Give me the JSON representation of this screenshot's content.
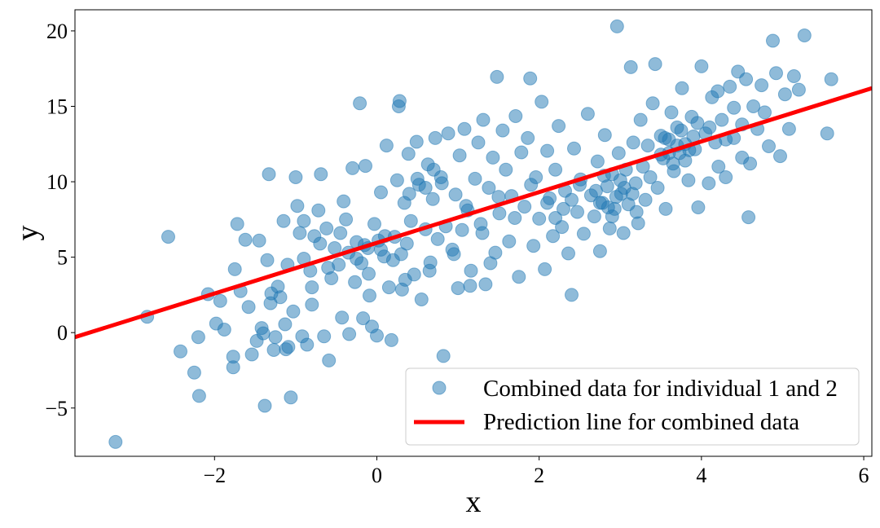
{
  "chart_data": {
    "type": "scatter",
    "xlabel": "x",
    "ylabel": "y",
    "xlim": [
      -3.72,
      6.1
    ],
    "ylim": [
      -8.2,
      21.4
    ],
    "xticks": [
      -2,
      0,
      2,
      4,
      6
    ],
    "yticks": [
      -5,
      0,
      5,
      10,
      15,
      20
    ],
    "xtick_labels": [
      "−2",
      "0",
      "2",
      "4",
      "6"
    ],
    "ytick_labels": [
      "−5",
      "0",
      "5",
      "10",
      "15",
      "20"
    ],
    "grid": false,
    "legend_position": "lower-right",
    "series": [
      {
        "name": "Combined data for individual 1 and 2",
        "kind": "scatter",
        "color": "#1f77b4",
        "alpha": 0.5,
        "points": [
          [
            -3.22,
            -7.25
          ],
          [
            -2.83,
            1.05
          ],
          [
            -2.57,
            6.35
          ],
          [
            -2.42,
            -1.25
          ],
          [
            -2.25,
            -2.65
          ],
          [
            -2.2,
            -0.3
          ],
          [
            -2.19,
            -4.2
          ],
          [
            -2.08,
            2.55
          ],
          [
            -1.98,
            0.6
          ],
          [
            -1.93,
            2.1
          ],
          [
            -1.88,
            0.2
          ],
          [
            -1.77,
            -1.6
          ],
          [
            -1.77,
            -2.3
          ],
          [
            -1.75,
            4.2
          ],
          [
            -1.72,
            7.2
          ],
          [
            -1.68,
            2.75
          ],
          [
            -1.62,
            6.15
          ],
          [
            -1.58,
            1.7
          ],
          [
            -1.54,
            -1.45
          ],
          [
            -1.48,
            -0.55
          ],
          [
            -1.45,
            6.1
          ],
          [
            -1.42,
            0.3
          ],
          [
            -1.4,
            -0.05
          ],
          [
            -1.38,
            -4.85
          ],
          [
            -1.35,
            4.8
          ],
          [
            -1.33,
            10.5
          ],
          [
            -1.31,
            1.95
          ],
          [
            -1.27,
            -1.15
          ],
          [
            -1.25,
            -0.3
          ],
          [
            -1.22,
            3.05
          ],
          [
            -1.19,
            2.35
          ],
          [
            -1.15,
            7.4
          ],
          [
            -1.13,
            0.55
          ],
          [
            -1.12,
            -1.1
          ],
          [
            -1.09,
            -0.95
          ],
          [
            -1.06,
            -4.3
          ],
          [
            -1.03,
            1.4
          ],
          [
            -1.0,
            10.3
          ],
          [
            -0.98,
            8.4
          ],
          [
            -0.95,
            6.6
          ],
          [
            -0.92,
            -0.25
          ],
          [
            -0.9,
            4.9
          ],
          [
            -0.86,
            -0.8
          ],
          [
            -0.82,
            4.1
          ],
          [
            -0.8,
            1.85
          ],
          [
            -0.77,
            6.4
          ],
          [
            -0.72,
            8.1
          ],
          [
            -0.69,
            10.5
          ],
          [
            -0.65,
            -0.25
          ],
          [
            -0.62,
            6.9
          ],
          [
            -0.59,
            -1.85
          ],
          [
            -0.56,
            3.6
          ],
          [
            -0.52,
            5.6
          ],
          [
            -0.47,
            4.5
          ],
          [
            -0.43,
            1.0
          ],
          [
            -0.41,
            8.7
          ],
          [
            -0.38,
            7.5
          ],
          [
            -0.34,
            -0.1
          ],
          [
            -0.3,
            10.9
          ],
          [
            -0.27,
            3.35
          ],
          [
            -0.25,
            6.0
          ],
          [
            -0.21,
            15.2
          ],
          [
            -0.19,
            4.6
          ],
          [
            -0.17,
            0.95
          ],
          [
            -0.14,
            11.05
          ],
          [
            -0.11,
            5.6
          ],
          [
            -0.09,
            2.45
          ],
          [
            -0.06,
            0.4
          ],
          [
            -0.03,
            7.2
          ],
          [
            0.0,
            -0.2
          ],
          [
            0.02,
            6.1
          ],
          [
            0.05,
            9.3
          ],
          [
            0.09,
            5.05
          ],
          [
            0.12,
            12.4
          ],
          [
            0.15,
            3.0
          ],
          [
            0.18,
            -0.5
          ],
          [
            0.22,
            6.35
          ],
          [
            0.25,
            10.1
          ],
          [
            0.27,
            15.0
          ],
          [
            0.28,
            15.35
          ],
          [
            0.31,
            2.85
          ],
          [
            0.34,
            8.6
          ],
          [
            0.37,
            5.9
          ],
          [
            0.39,
            11.85
          ],
          [
            0.42,
            7.4
          ],
          [
            0.46,
            3.85
          ],
          [
            0.49,
            12.65
          ],
          [
            0.52,
            9.8
          ],
          [
            0.55,
            2.2
          ],
          [
            0.6,
            6.85
          ],
          [
            0.63,
            11.15
          ],
          [
            0.66,
            4.65
          ],
          [
            0.69,
            8.85
          ],
          [
            0.72,
            12.9
          ],
          [
            0.75,
            6.2
          ],
          [
            0.79,
            10.3
          ],
          [
            0.82,
            -1.55
          ],
          [
            0.85,
            7.05
          ],
          [
            0.88,
            13.2
          ],
          [
            0.93,
            5.5
          ],
          [
            0.97,
            9.15
          ],
          [
            1.0,
            2.95
          ],
          [
            1.02,
            11.75
          ],
          [
            1.05,
            6.8
          ],
          [
            1.08,
            13.5
          ],
          [
            1.12,
            8.1
          ],
          [
            1.16,
            4.1
          ],
          [
            1.21,
            10.2
          ],
          [
            1.25,
            12.6
          ],
          [
            1.28,
            7.2
          ],
          [
            1.31,
            14.1
          ],
          [
            1.34,
            3.2
          ],
          [
            1.38,
            9.6
          ],
          [
            1.43,
            11.6
          ],
          [
            1.46,
            5.3
          ],
          [
            1.48,
            16.95
          ],
          [
            1.51,
            7.9
          ],
          [
            1.55,
            13.4
          ],
          [
            1.59,
            10.8
          ],
          [
            1.63,
            6.05
          ],
          [
            1.66,
            9.05
          ],
          [
            1.71,
            14.35
          ],
          [
            1.75,
            3.7
          ],
          [
            1.78,
            11.95
          ],
          [
            1.82,
            8.35
          ],
          [
            1.86,
            12.9
          ],
          [
            1.89,
            16.85
          ],
          [
            1.93,
            5.75
          ],
          [
            1.96,
            10.3
          ],
          [
            2.0,
            7.55
          ],
          [
            2.03,
            15.3
          ],
          [
            2.07,
            4.2
          ],
          [
            2.1,
            12.05
          ],
          [
            2.13,
            8.9
          ],
          [
            2.17,
            6.4
          ],
          [
            2.2,
            10.8
          ],
          [
            2.24,
            13.7
          ],
          [
            2.28,
            7.0
          ],
          [
            2.32,
            9.4
          ],
          [
            2.36,
            5.25
          ],
          [
            2.4,
            2.5
          ],
          [
            2.43,
            12.2
          ],
          [
            2.47,
            8.0
          ],
          [
            2.51,
            10.15
          ],
          [
            2.55,
            6.55
          ],
          [
            2.6,
            14.5
          ],
          [
            2.64,
            9.1
          ],
          [
            2.68,
            7.7
          ],
          [
            2.72,
            11.35
          ],
          [
            2.75,
            5.4
          ],
          [
            2.78,
            8.6
          ],
          [
            2.81,
            13.1
          ],
          [
            2.84,
            9.7
          ],
          [
            2.87,
            6.9
          ],
          [
            2.9,
            10.5
          ],
          [
            2.93,
            8.2
          ],
          [
            2.96,
            20.3
          ],
          [
            2.98,
            11.9
          ],
          [
            3.01,
            9.2
          ],
          [
            3.04,
            6.6
          ],
          [
            3.07,
            10.8
          ],
          [
            3.1,
            8.5
          ],
          [
            3.13,
            17.6
          ],
          [
            3.16,
            12.6
          ],
          [
            3.19,
            9.9
          ],
          [
            3.22,
            7.25
          ],
          [
            3.25,
            14.1
          ],
          [
            3.28,
            11.0
          ],
          [
            3.31,
            8.8
          ],
          [
            3.34,
            12.4
          ],
          [
            3.37,
            10.3
          ],
          [
            3.4,
            15.2
          ],
          [
            3.43,
            17.8
          ],
          [
            3.46,
            9.6
          ],
          [
            3.5,
            13.05
          ],
          [
            3.53,
            11.55
          ],
          [
            3.56,
            8.2
          ],
          [
            3.6,
            12.8
          ],
          [
            3.63,
            14.6
          ],
          [
            3.66,
            10.7
          ],
          [
            3.7,
            13.6
          ],
          [
            3.73,
            11.9
          ],
          [
            3.76,
            16.2
          ],
          [
            3.8,
            12.5
          ],
          [
            3.84,
            10.1
          ],
          [
            3.88,
            14.3
          ],
          [
            3.92,
            12.15
          ],
          [
            3.96,
            8.3
          ],
          [
            4.0,
            17.65
          ],
          [
            4.05,
            13.2
          ],
          [
            4.09,
            9.9
          ],
          [
            4.13,
            15.6
          ],
          [
            4.17,
            12.6
          ],
          [
            4.21,
            11.0
          ],
          [
            4.25,
            14.1
          ],
          [
            4.3,
            10.3
          ],
          [
            4.35,
            16.3
          ],
          [
            4.4,
            12.9
          ],
          [
            4.45,
            17.3
          ],
          [
            4.5,
            13.8
          ],
          [
            4.55,
            16.8
          ],
          [
            4.58,
            7.65
          ],
          [
            4.6,
            11.2
          ],
          [
            4.64,
            15.0
          ],
          [
            4.69,
            13.5
          ],
          [
            4.74,
            16.4
          ],
          [
            4.78,
            14.6
          ],
          [
            4.83,
            12.35
          ],
          [
            4.88,
            19.35
          ],
          [
            4.92,
            17.2
          ],
          [
            4.97,
            11.7
          ],
          [
            5.03,
            15.8
          ],
          [
            5.08,
            13.5
          ],
          [
            5.14,
            17.0
          ],
          [
            5.2,
            16.1
          ],
          [
            5.27,
            19.7
          ],
          [
            5.55,
            13.2
          ],
          [
            5.6,
            16.8
          ],
          [
            -0.6,
            4.3
          ],
          [
            -0.35,
            5.3
          ],
          [
            -0.15,
            5.8
          ],
          [
            0.05,
            5.5
          ],
          [
            0.2,
            4.8
          ],
          [
            -0.45,
            6.6
          ],
          [
            -0.25,
            4.9
          ],
          [
            0.1,
            6.4
          ],
          [
            -0.1,
            3.9
          ],
          [
            0.3,
            5.2
          ],
          [
            0.5,
            10.2
          ],
          [
            0.6,
            9.6
          ],
          [
            0.7,
            10.8
          ],
          [
            0.4,
            9.2
          ],
          [
            0.8,
            9.9
          ],
          [
            2.85,
            8.3
          ],
          [
            2.95,
            9.0
          ],
          [
            3.05,
            9.6
          ],
          [
            2.75,
            8.6
          ],
          [
            3.15,
            9.2
          ],
          [
            2.9,
            7.7
          ],
          [
            3.0,
            10.1
          ],
          [
            2.7,
            9.4
          ],
          [
            3.2,
            8.0
          ],
          [
            2.8,
            10.4
          ],
          [
            3.6,
            11.9
          ],
          [
            3.7,
            12.4
          ],
          [
            3.8,
            11.4
          ],
          [
            3.9,
            13.0
          ],
          [
            3.55,
            12.9
          ],
          [
            3.75,
            13.4
          ],
          [
            3.65,
            11.2
          ],
          [
            3.85,
            12.1
          ],
          [
            3.95,
            13.9
          ],
          [
            3.5,
            11.8
          ],
          [
            2.3,
            8.2
          ],
          [
            2.4,
            8.8
          ],
          [
            2.2,
            7.6
          ],
          [
            2.5,
            9.8
          ],
          [
            2.1,
            8.6
          ],
          [
            1.3,
            6.6
          ],
          [
            1.5,
            9.0
          ],
          [
            1.7,
            7.6
          ],
          [
            1.9,
            9.8
          ],
          [
            1.1,
            8.4
          ],
          [
            -0.8,
            3.0
          ],
          [
            -1.1,
            4.5
          ],
          [
            -0.7,
            5.9
          ],
          [
            -1.3,
            2.6
          ],
          [
            -0.9,
            7.4
          ],
          [
            0.35,
            3.5
          ],
          [
            0.65,
            4.1
          ],
          [
            0.95,
            5.2
          ],
          [
            1.15,
            3.1
          ],
          [
            1.4,
            4.6
          ],
          [
            4.3,
            12.8
          ],
          [
            4.4,
            14.9
          ],
          [
            4.2,
            16.0
          ],
          [
            4.5,
            11.6
          ],
          [
            4.1,
            13.6
          ]
        ]
      },
      {
        "name": "Prediction line for combined data",
        "kind": "line",
        "color": "#ff0000",
        "x": [
          -3.72,
          6.1
        ],
        "y": [
          -0.3,
          16.2
        ]
      }
    ]
  }
}
